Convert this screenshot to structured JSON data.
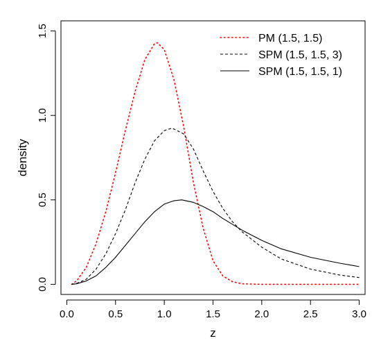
{
  "chart_data": {
    "type": "line",
    "title": "",
    "xlabel": "z",
    "ylabel": "density",
    "xlim": [
      -0.06,
      3.06
    ],
    "ylim": [
      -0.06,
      1.56
    ],
    "xticks": [
      0.0,
      0.5,
      1.0,
      1.5,
      2.0,
      2.5,
      3.0
    ],
    "xtick_labels": [
      "0.0",
      "0.5",
      "1.0",
      "1.5",
      "2.0",
      "2.5",
      "3.0"
    ],
    "yticks": [
      0.0,
      0.5,
      1.0,
      1.5
    ],
    "ytick_labels": [
      "0.0",
      "0.5",
      "1.0",
      "1.5"
    ],
    "grid": false,
    "legend": {
      "position": "top-right",
      "box": false
    },
    "series": [
      {
        "name": "PM (1.5, 1.5)",
        "color": "#ff0000",
        "style": "dotted",
        "x": [
          0.05,
          0.1,
          0.2,
          0.3,
          0.4,
          0.5,
          0.6,
          0.7,
          0.8,
          0.9,
          0.93,
          1.0,
          1.1,
          1.2,
          1.3,
          1.4,
          1.5,
          1.6,
          1.7,
          1.8,
          2.0,
          2.5,
          3.0
        ],
        "y": [
          0.0,
          0.02,
          0.1,
          0.24,
          0.43,
          0.66,
          0.91,
          1.14,
          1.33,
          1.425,
          1.43,
          1.39,
          1.21,
          0.93,
          0.6,
          0.33,
          0.14,
          0.05,
          0.015,
          0.003,
          0.0,
          0.0,
          0.0
        ]
      },
      {
        "name": "SPM (1.5, 1.5, 3)",
        "color": "#000000",
        "style": "dashed",
        "x": [
          0.05,
          0.1,
          0.2,
          0.3,
          0.4,
          0.5,
          0.6,
          0.7,
          0.8,
          0.9,
          1.0,
          1.08,
          1.2,
          1.3,
          1.4,
          1.5,
          1.6,
          1.7,
          1.8,
          2.0,
          2.2,
          2.5,
          2.8,
          3.0
        ],
        "y": [
          0.0,
          0.005,
          0.03,
          0.09,
          0.18,
          0.3,
          0.44,
          0.6,
          0.74,
          0.85,
          0.91,
          0.925,
          0.89,
          0.8,
          0.67,
          0.55,
          0.45,
          0.37,
          0.31,
          0.22,
          0.15,
          0.09,
          0.055,
          0.04
        ]
      },
      {
        "name": "SPM (1.5, 1.5, 1)",
        "color": "#000000",
        "style": "solid",
        "x": [
          0.05,
          0.1,
          0.2,
          0.3,
          0.4,
          0.5,
          0.6,
          0.7,
          0.8,
          0.9,
          1.0,
          1.1,
          1.18,
          1.3,
          1.4,
          1.5,
          1.6,
          1.8,
          2.0,
          2.2,
          2.5,
          2.8,
          3.0
        ],
        "y": [
          0.0,
          0.003,
          0.02,
          0.05,
          0.1,
          0.16,
          0.23,
          0.3,
          0.37,
          0.43,
          0.475,
          0.495,
          0.5,
          0.485,
          0.46,
          0.43,
          0.39,
          0.32,
          0.26,
          0.21,
          0.16,
          0.125,
          0.105
        ]
      }
    ]
  }
}
